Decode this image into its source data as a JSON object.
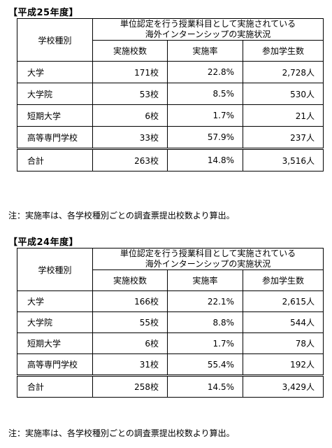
{
  "sections": [
    {
      "title": "【平成25年度】",
      "header": {
        "type_label": "学校種別",
        "group_line1": "単位認定を行う授業科目として実施されている",
        "group_line2": "海外インターンシップの実施状況",
        "col_schools": "実施校数",
        "col_rate": "実施率",
        "col_students": "参加学生数"
      },
      "rows": [
        {
          "type": "大学",
          "schools": "171校",
          "rate": "22.8%",
          "students": "2,728人"
        },
        {
          "type": "大学院",
          "schools": "53校",
          "rate": "8.5%",
          "students": "530人"
        },
        {
          "type": "短期大学",
          "schools": "6校",
          "rate": "1.7%",
          "students": "21人"
        },
        {
          "type": "高等専門学校",
          "schools": "33校",
          "rate": "57.9%",
          "students": "237人"
        }
      ],
      "total": {
        "type": "合計",
        "schools": "263校",
        "rate": "14.8%",
        "students": "3,516人"
      },
      "note": "注：実施率は、各学校種別ごとの調査票提出校数より算出。"
    },
    {
      "title": "【平成24年度】",
      "header": {
        "type_label": "学校種別",
        "group_line1": "単位認定を行う授業科目として実施されている",
        "group_line2": "海外インターンシップの実施状況",
        "col_schools": "実施校数",
        "col_rate": "実施率",
        "col_students": "参加学生数"
      },
      "rows": [
        {
          "type": "大学",
          "schools": "166校",
          "rate": "22.1%",
          "students": "2,615人"
        },
        {
          "type": "大学院",
          "schools": "55校",
          "rate": "8.8%",
          "students": "544人"
        },
        {
          "type": "短期大学",
          "schools": "6校",
          "rate": "1.7%",
          "students": "78人"
        },
        {
          "type": "高等専門学校",
          "schools": "31校",
          "rate": "55.4%",
          "students": "192人"
        }
      ],
      "total": {
        "type": "合計",
        "schools": "258校",
        "rate": "14.5%",
        "students": "3,429人"
      },
      "note": "注：実施率は、各学校種別ごとの調査票提出校数より算出。"
    }
  ]
}
